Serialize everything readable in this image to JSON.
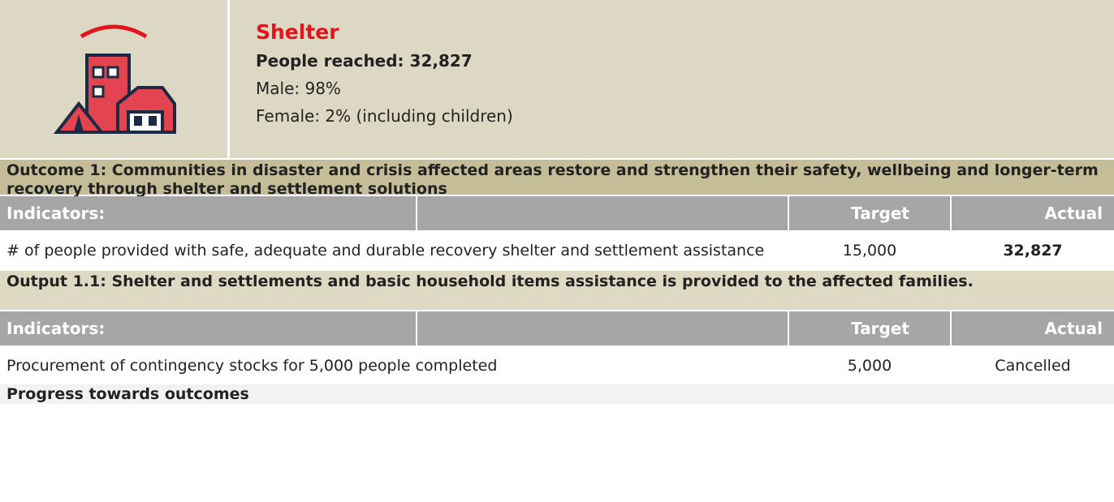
{
  "header": {
    "title": "Shelter",
    "people_reached": "People reached: 32,827",
    "male": "Male: 98%",
    "female": "Female: 2% (including children)"
  },
  "sections": [
    {
      "title": "Outcome 1: Communities in disaster and crisis affected areas restore and strengthen their safety, wellbeing and longer-term recovery through shelter and settlement solutions",
      "columns": [
        "Indicators:",
        "Target",
        "Actual"
      ],
      "rows": [
        [
          "# of people provided with safe, adequate and durable recovery shelter and settlement assistance",
          "15,000",
          "32,827"
        ]
      ]
    },
    {
      "title": "Output 1.1: Shelter and settlements and basic household items assistance is provided to the affected families.",
      "columns": [
        "Indicators:",
        "Target",
        "Actual"
      ],
      "rows": [
        [
          "Procurement of contingency stocks for 5,000 people completed",
          "5,000",
          "Cancelled"
        ]
      ]
    }
  ],
  "footer": "Progress towards outcomes"
}
